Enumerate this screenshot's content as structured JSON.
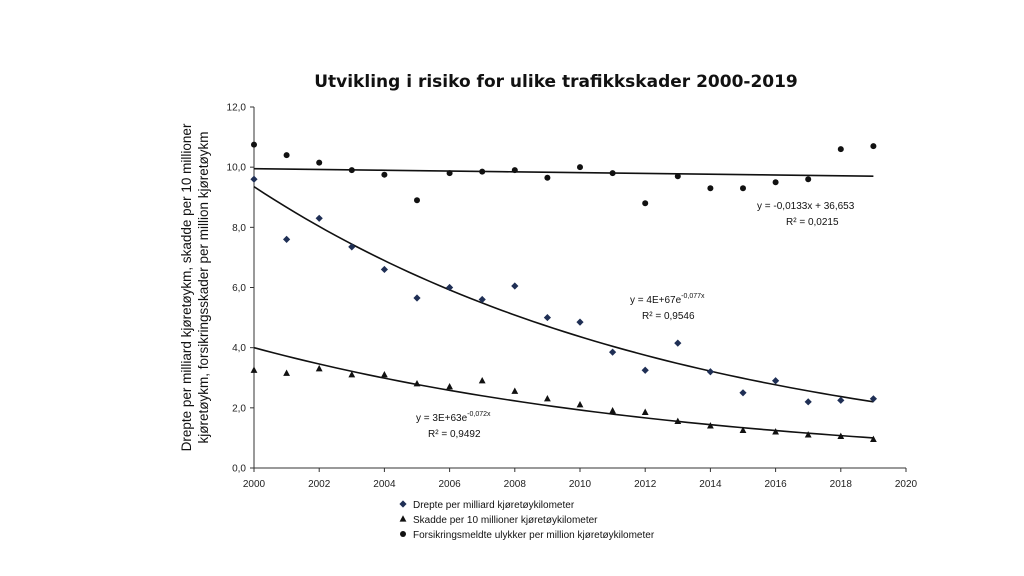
{
  "chart_data": {
    "type": "scatter",
    "title": "Utvikling i risiko for ulike trafikkskader 2000-2019",
    "ylabel_lines": [
      "Drepte per milliard kjøretøykm, skadde per 10 millioner",
      "kjøretøykm, forsikringsskader per million kjøretøykm"
    ],
    "xlabel": "",
    "xlim": [
      2000,
      2020
    ],
    "ylim": [
      0,
      12
    ],
    "xticks": [
      "2000",
      "2002",
      "2004",
      "2006",
      "2008",
      "2010",
      "2012",
      "2014",
      "2016",
      "2018",
      "2020"
    ],
    "yticks": [
      "0,0",
      "2,0",
      "4,0",
      "6,0",
      "8,0",
      "10,0",
      "12,0"
    ],
    "x": [
      2000,
      2001,
      2002,
      2003,
      2004,
      2005,
      2006,
      2007,
      2008,
      2009,
      2010,
      2011,
      2012,
      2013,
      2014,
      2015,
      2016,
      2017,
      2018,
      2019
    ],
    "series": [
      {
        "name": "Drepte per milliard kjøretøykilometer",
        "marker": "diamond",
        "values": [
          9.6,
          7.6,
          8.3,
          7.35,
          6.6,
          5.65,
          6.0,
          5.6,
          6.05,
          5.0,
          4.85,
          3.85,
          3.25,
          4.15,
          3.2,
          2.5,
          2.9,
          2.2,
          2.25,
          2.3
        ],
        "trend": {
          "kind": "exp",
          "from": 9.35,
          "to": 2.2
        },
        "equation": "y = 4E+67e",
        "equation_exp": "-0,077x",
        "r2": "R² = 0,9546"
      },
      {
        "name": "Skadde per 10 millioner kjøretøykilometer",
        "marker": "triangle",
        "values": [
          3.25,
          3.15,
          3.3,
          3.1,
          3.1,
          2.8,
          2.7,
          2.9,
          2.55,
          2.3,
          2.1,
          1.9,
          1.85,
          1.55,
          1.4,
          1.25,
          1.2,
          1.1,
          1.05,
          0.95
        ],
        "trend": {
          "kind": "exp",
          "from": 4.0,
          "to": 1.0
        },
        "equation": "y = 3E+63e",
        "equation_exp": "-0,072x",
        "r2": "R² = 0,9492"
      },
      {
        "name": "Forsikringsmeldte ulykker per million kjøretøykilometer",
        "marker": "circle",
        "values": [
          10.75,
          10.4,
          10.15,
          9.9,
          9.75,
          8.9,
          9.8,
          9.85,
          9.9,
          9.65,
          10.0,
          9.8,
          8.8,
          9.7,
          9.3,
          9.3,
          9.5,
          9.6,
          10.6,
          10.7
        ],
        "trend": {
          "kind": "linear",
          "from": 9.95,
          "to": 9.7
        },
        "equation": "y = -0,0133x + 36,653",
        "equation_exp": "",
        "r2": "R² = 0,0215"
      }
    ],
    "legend_position": "bottom",
    "grid": false
  }
}
